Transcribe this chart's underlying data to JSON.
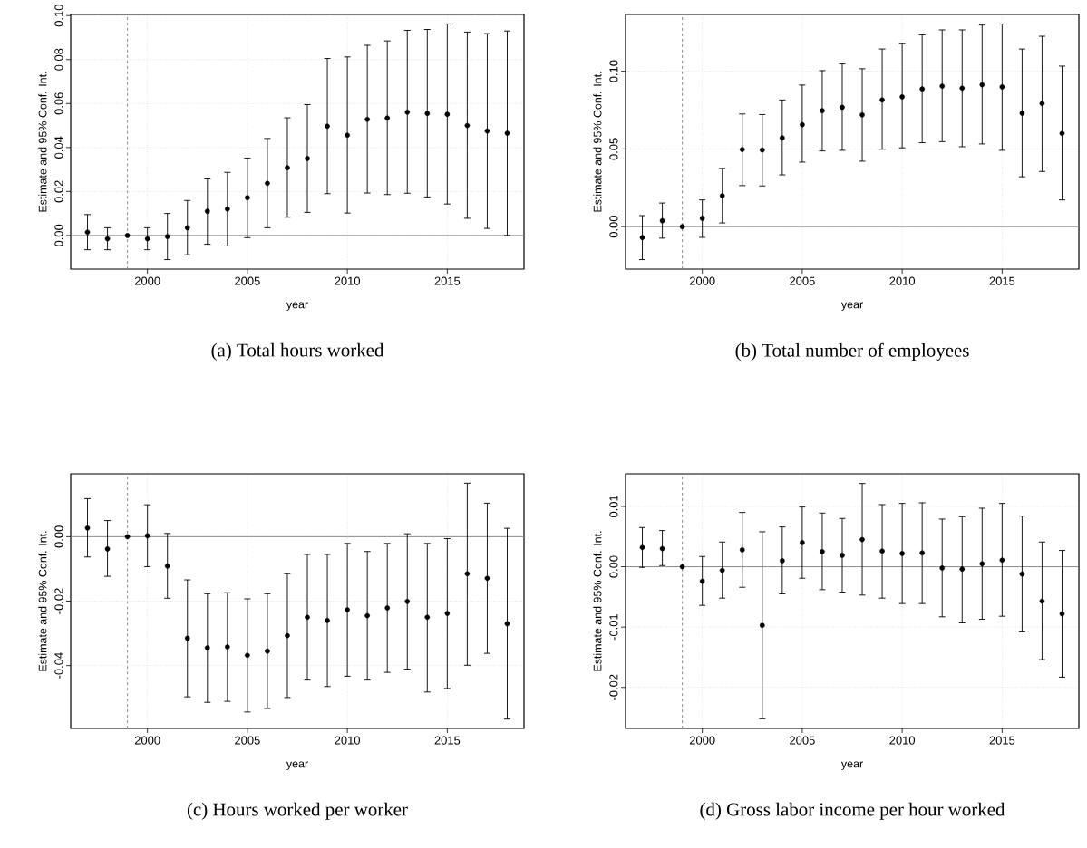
{
  "chart_data": [
    {
      "type": "scatter",
      "title": "(a) Total hours worked",
      "xlabel": "year",
      "ylabel": "Estimate and 95% Conf. Int.",
      "color": "#000000",
      "grid": true,
      "x": [
        1997,
        1998,
        1999,
        2000,
        2001,
        2002,
        2003,
        2004,
        2005,
        2006,
        2007,
        2008,
        2009,
        2010,
        2011,
        2012,
        2013,
        2014,
        2015,
        2016,
        2017,
        2018
      ],
      "values": [
        0.0015,
        -0.0015,
        0,
        -0.0015,
        -0.0005,
        0.0035,
        0.011,
        0.012,
        0.0172,
        0.0237,
        0.0308,
        0.035,
        0.0497,
        0.0456,
        0.0528,
        0.0534,
        0.0561,
        0.0555,
        0.0551,
        0.05,
        0.0475,
        0.0465
      ],
      "errors": [
        [
          -0.0065,
          0.0095
        ],
        [
          -0.0065,
          0.0035
        ],
        null,
        [
          -0.0065,
          0.0035
        ],
        [
          -0.011,
          0.01
        ],
        [
          -0.0088,
          0.0159
        ],
        [
          -0.004,
          0.0257
        ],
        [
          -0.0048,
          0.0287
        ],
        [
          -0.001,
          0.0352
        ],
        [
          0.0035,
          0.0441
        ],
        [
          0.0083,
          0.0535
        ],
        [
          0.0105,
          0.0595
        ],
        [
          0.019,
          0.0805
        ],
        [
          0.0102,
          0.0812
        ],
        [
          0.0193,
          0.0865
        ],
        [
          0.0186,
          0.0885
        ],
        [
          0.0192,
          0.0933
        ],
        [
          0.0175,
          0.0937
        ],
        [
          0.0143,
          0.0962
        ],
        [
          0.0078,
          0.0925
        ],
        [
          0.0032,
          0.0918
        ],
        [
          0,
          0.093
        ]
      ],
      "xlim": [
        1996.16,
        2018.84
      ],
      "ylim": [
        -0.0153,
        0.1005
      ],
      "xticks": [
        2000,
        2005,
        2010,
        2015
      ],
      "yticks": [
        {
          "value": 0,
          "label": "0.00"
        },
        {
          "value": 0.02,
          "label": "0.02"
        },
        {
          "value": 0.04,
          "label": "0.04"
        },
        {
          "value": 0.06,
          "label": "0.06"
        },
        {
          "value": 0.08,
          "label": "0.08"
        },
        {
          "value": 0.1,
          "label": "0.10"
        }
      ],
      "ref_lines": [
        {
          "axis": "y",
          "value": 0,
          "color": "#808080",
          "line_style": "solid"
        },
        {
          "axis": "x",
          "value": 1999,
          "color": "#808080",
          "line_style": "dashed"
        }
      ]
    },
    {
      "type": "scatter",
      "title": "(b) Total number of employees",
      "xlabel": "year",
      "ylabel": "Estimate and 95% Conf. Int.",
      "color": "#000000",
      "grid": true,
      "x": [
        1997,
        1998,
        1999,
        2000,
        2001,
        2002,
        2003,
        2004,
        2005,
        2006,
        2007,
        2008,
        2009,
        2010,
        2011,
        2012,
        2013,
        2014,
        2015,
        2016,
        2017,
        2018
      ],
      "values": [
        -0.007,
        0.0038,
        0,
        0.0054,
        0.0199,
        0.0496,
        0.0493,
        0.0571,
        0.0656,
        0.0746,
        0.0768,
        0.0719,
        0.0815,
        0.0835,
        0.0886,
        0.0904,
        0.0891,
        0.0913,
        0.0899,
        0.073,
        0.0792,
        0.06
      ],
      "errors": [
        [
          -0.0212,
          0.0071
        ],
        [
          -0.0074,
          0.0152
        ],
        null,
        [
          -0.0069,
          0.0172
        ],
        [
          0.0024,
          0.0375
        ],
        [
          0.0264,
          0.0725
        ],
        [
          0.0262,
          0.0721
        ],
        [
          0.0333,
          0.0815
        ],
        [
          0.0415,
          0.0911
        ],
        [
          0.0487,
          0.1004
        ],
        [
          0.0491,
          0.1047
        ],
        [
          0.0421,
          0.1016
        ],
        [
          0.0498,
          0.1143
        ],
        [
          0.0507,
          0.1177
        ],
        [
          0.054,
          0.1234
        ],
        [
          0.0547,
          0.1266
        ],
        [
          0.0514,
          0.1266
        ],
        [
          0.0532,
          0.1297
        ],
        [
          0.0491,
          0.1304
        ],
        [
          0.0321,
          0.1143
        ],
        [
          0.0355,
          0.1225
        ],
        [
          0.0172,
          0.1033
        ]
      ],
      "xlim": [
        1996.16,
        2018.84
      ],
      "ylim": [
        -0.0273,
        0.1365
      ],
      "xticks": [
        2000,
        2005,
        2010,
        2015
      ],
      "yticks": [
        {
          "value": 0,
          "label": "0.00"
        },
        {
          "value": 0.05,
          "label": "0.05"
        },
        {
          "value": 0.1,
          "label": "0.10"
        }
      ],
      "ref_lines": [
        {
          "axis": "y",
          "value": 0,
          "color": "#808080",
          "line_style": "solid"
        },
        {
          "axis": "x",
          "value": 1999,
          "color": "#808080",
          "line_style": "dashed"
        }
      ]
    },
    {
      "type": "scatter",
      "title": "(c) Hours worked per worker",
      "xlabel": "year",
      "ylabel": "Estimate and 95% Conf. Int.",
      "color": "#000000",
      "grid": true,
      "x": [
        1997,
        1998,
        1999,
        2000,
        2001,
        2002,
        2003,
        2004,
        2005,
        2006,
        2007,
        2008,
        2009,
        2010,
        2011,
        2012,
        2013,
        2014,
        2015,
        2016,
        2017,
        2018
      ],
      "values": [
        0.0027,
        -0.0038,
        0,
        0.0003,
        -0.0091,
        -0.0315,
        -0.0345,
        -0.0342,
        -0.0368,
        -0.0355,
        -0.0307,
        -0.025,
        -0.026,
        -0.0227,
        -0.0245,
        -0.0221,
        -0.0201,
        -0.025,
        -0.0238,
        -0.0115,
        -0.0129,
        -0.027
      ],
      "errors": [
        [
          -0.0063,
          0.0118
        ],
        [
          -0.0123,
          0.005
        ],
        null,
        [
          -0.0093,
          0.0099
        ],
        [
          -0.0191,
          0.001
        ],
        [
          -0.0497,
          -0.0134
        ],
        [
          -0.0514,
          -0.0177
        ],
        [
          -0.0511,
          -0.0174
        ],
        [
          -0.0544,
          -0.0193
        ],
        [
          -0.0533,
          -0.0177
        ],
        [
          -0.0499,
          -0.0115
        ],
        [
          -0.0445,
          -0.0055
        ],
        [
          -0.0465,
          -0.0055
        ],
        [
          -0.0433,
          -0.0021
        ],
        [
          -0.0445,
          -0.0046
        ],
        [
          -0.0421,
          -0.0021
        ],
        [
          -0.0411,
          0.0009
        ],
        [
          -0.0482,
          -0.0021
        ],
        [
          -0.0471,
          -0.0006
        ],
        [
          -0.0399,
          0.0166
        ],
        [
          -0.0362,
          0.0104
        ],
        [
          -0.0566,
          0.0026
        ]
      ],
      "xlim": [
        1996.16,
        2018.84
      ],
      "ylim": [
        -0.0595,
        0.0195
      ],
      "xticks": [
        2000,
        2005,
        2010,
        2015
      ],
      "yticks": [
        {
          "value": -0.04,
          "label": "-0.04"
        },
        {
          "value": -0.02,
          "label": "-0.02"
        },
        {
          "value": 0,
          "label": "0.00"
        }
      ],
      "ref_lines": [
        {
          "axis": "y",
          "value": 0,
          "color": "#808080",
          "line_style": "solid"
        },
        {
          "axis": "x",
          "value": 1999,
          "color": "#808080",
          "line_style": "dashed"
        }
      ]
    },
    {
      "type": "scatter",
      "title": "(d) Gross labor income per hour worked",
      "xlabel": "year",
      "ylabel": "Estimate and 95% Conf. Int.",
      "color": "#000000",
      "grid": true,
      "x": [
        1997,
        1998,
        1999,
        2000,
        2001,
        2002,
        2003,
        2004,
        2005,
        2006,
        2007,
        2008,
        2009,
        2010,
        2011,
        2012,
        2013,
        2014,
        2015,
        2016,
        2017,
        2018
      ],
      "values": [
        0.0032,
        0.003,
        0,
        -0.0024,
        -0.0006,
        0.0028,
        -0.0097,
        0.001,
        0.004,
        0.0025,
        0.0019,
        0.0045,
        0.0026,
        0.0022,
        0.0023,
        -0.0002,
        -0.0004,
        0.0005,
        0.0011,
        -0.0012,
        -0.0057,
        -0.0078
      ],
      "errors": [
        [
          -0.0001,
          0.0065
        ],
        [
          0.0002,
          0.006
        ],
        null,
        [
          -0.0064,
          0.0017
        ],
        [
          -0.0052,
          0.0041
        ],
        [
          -0.0034,
          0.009
        ],
        [
          -0.0252,
          0.0058
        ],
        [
          -0.0045,
          0.0066
        ],
        [
          -0.0019,
          0.0099
        ],
        [
          -0.0038,
          0.0089
        ],
        [
          -0.0042,
          0.008
        ],
        [
          -0.0047,
          0.0138
        ],
        [
          -0.0052,
          0.0103
        ],
        [
          -0.0061,
          0.0105
        ],
        [
          -0.0061,
          0.0106
        ],
        [
          -0.0083,
          0.0079
        ],
        [
          -0.0093,
          0.0083
        ],
        [
          -0.0087,
          0.0097
        ],
        [
          -0.0082,
          0.0105
        ],
        [
          -0.0108,
          0.0084
        ],
        [
          -0.0154,
          0.0041
        ],
        [
          -0.0183,
          0.0027
        ]
      ],
      "xlim": [
        1996.16,
        2018.84
      ],
      "ylim": [
        -0.0268,
        0.0154
      ],
      "xticks": [
        2000,
        2005,
        2010,
        2015
      ],
      "yticks": [
        {
          "value": -0.02,
          "label": "-0.02"
        },
        {
          "value": -0.01,
          "label": "-0.01"
        },
        {
          "value": 0,
          "label": "0.00"
        },
        {
          "value": 0.01,
          "label": "0.01"
        }
      ],
      "ref_lines": [
        {
          "axis": "y",
          "value": 0,
          "color": "#808080",
          "line_style": "solid"
        },
        {
          "axis": "x",
          "value": 1999,
          "color": "#808080",
          "line_style": "dashed"
        }
      ]
    }
  ]
}
